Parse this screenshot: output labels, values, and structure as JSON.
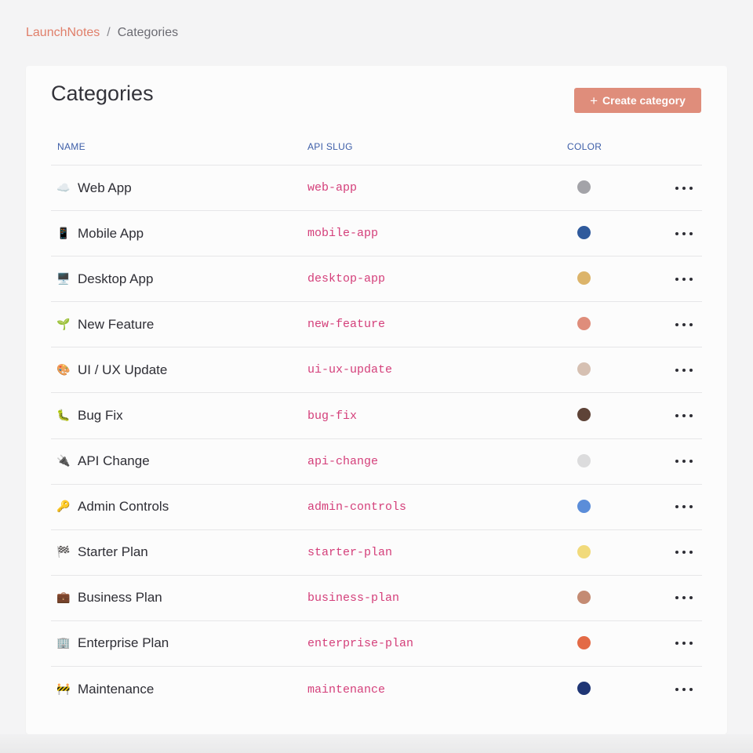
{
  "breadcrumb": {
    "root": "LaunchNotes",
    "separator": "/",
    "current": "Categories"
  },
  "page": {
    "title": "Categories",
    "create_button_label": "Create category",
    "create_button_icon": "plus-icon"
  },
  "table": {
    "columns": {
      "name": "NAME",
      "slug": "API SLUG",
      "color": "COLOR"
    },
    "rows": [
      {
        "emoji": "☁️",
        "icon": "cloud-icon",
        "name": "Web App",
        "slug": "web-app",
        "color": "#a3a3a8"
      },
      {
        "emoji": "📱",
        "icon": "mobile-phone-icon",
        "name": "Mobile App",
        "slug": "mobile-app",
        "color": "#2f5a9c"
      },
      {
        "emoji": "🖥️",
        "icon": "desktop-computer-icon",
        "name": "Desktop App",
        "slug": "desktop-app",
        "color": "#dcb46a"
      },
      {
        "emoji": "🌱",
        "icon": "seedling-icon",
        "name": "New Feature",
        "slug": "new-feature",
        "color": "#df8d7b"
      },
      {
        "emoji": "🎨",
        "icon": "palette-icon",
        "name": "UI / UX Update",
        "slug": "ui-ux-update",
        "color": "#d6c0b2"
      },
      {
        "emoji": "🐛",
        "icon": "bug-icon",
        "name": "Bug Fix",
        "slug": "bug-fix",
        "color": "#5e4337"
      },
      {
        "emoji": "🔌",
        "icon": "electric-plug-icon",
        "name": "API Change",
        "slug": "api-change",
        "color": "#dcdcdd"
      },
      {
        "emoji": "🔑",
        "icon": "key-icon",
        "name": "Admin Controls",
        "slug": "admin-controls",
        "color": "#5b8dd9"
      },
      {
        "emoji": "🏁",
        "icon": "checkered-flag-icon",
        "name": "Starter Plan",
        "slug": "starter-plan",
        "color": "#f1da7b"
      },
      {
        "emoji": "💼",
        "icon": "briefcase-icon",
        "name": "Business Plan",
        "slug": "business-plan",
        "color": "#c48b73"
      },
      {
        "emoji": "🏢",
        "icon": "office-building-icon",
        "name": "Enterprise Plan",
        "slug": "enterprise-plan",
        "color": "#e36a46"
      },
      {
        "emoji": "🚧",
        "icon": "construction-icon",
        "name": "Maintenance",
        "slug": "maintenance",
        "color": "#1f3675"
      }
    ]
  },
  "colors": {
    "accent": "#df8d7b",
    "link": "#e07f6a",
    "header_text": "#3d5ea8",
    "slug_text": "#d43f7a"
  }
}
